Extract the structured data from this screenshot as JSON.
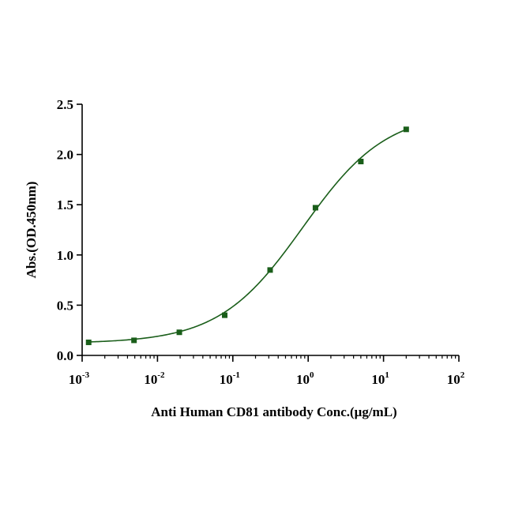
{
  "chart_data": {
    "type": "scatter",
    "xlabel": "Anti Human CD81 antibody Conc.(μg/mL)",
    "ylabel": "Abs.(OD.450nm)",
    "x_scale": "log",
    "xlim": [
      0.001,
      100
    ],
    "ylim": [
      0,
      2.5
    ],
    "x_ticks": [
      {
        "value": 0.001,
        "base": "10",
        "exp": "-3"
      },
      {
        "value": 0.01,
        "base": "10",
        "exp": "-2"
      },
      {
        "value": 0.1,
        "base": "10",
        "exp": "-1"
      },
      {
        "value": 1,
        "base": "10",
        "exp": "0"
      },
      {
        "value": 10,
        "base": "10",
        "exp": "1"
      },
      {
        "value": 100,
        "base": "10",
        "exp": "2"
      }
    ],
    "y_ticks": [
      {
        "value": 0,
        "label": "0.0"
      },
      {
        "value": 0.5,
        "label": "0.5"
      },
      {
        "value": 1,
        "label": "1.0"
      },
      {
        "value": 1.5,
        "label": "1.5"
      },
      {
        "value": 2,
        "label": "2.0"
      },
      {
        "value": 2.5,
        "label": "2.5"
      }
    ],
    "grid": false,
    "color": "#1a5e1a",
    "series": [
      {
        "x": [
          0.00122,
          0.00488,
          0.0195,
          0.078,
          0.3125,
          1.25,
          5,
          20
        ],
        "y": [
          0.13,
          0.15,
          0.23,
          0.4,
          0.85,
          1.47,
          1.93,
          2.25
        ],
        "fit": "4PL"
      }
    ]
  }
}
